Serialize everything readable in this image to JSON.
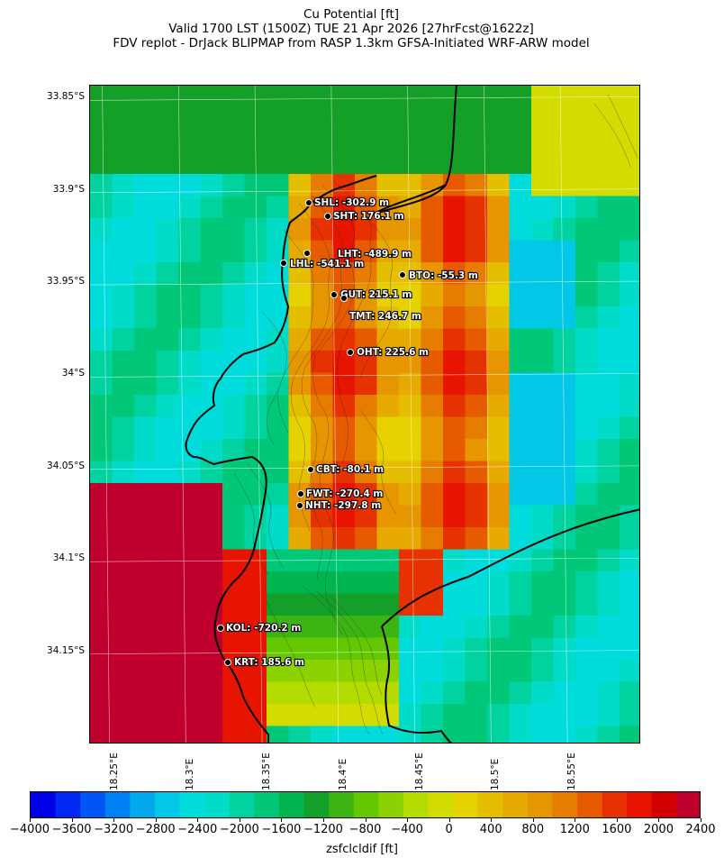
{
  "title": {
    "line1": "Cu Potential [ft]",
    "line2": "Valid 1700 LST (1500Z) TUE 21 Apr 2026 [27hrFcst@1622z]",
    "line3": "FDV replot - DrJack BLIPMAP from RASP 1.3km GFSA-Initiated WRF-ARW model"
  },
  "axes": {
    "lat_labels": [
      "33.85°S",
      "33.9°S",
      "33.95°S",
      "34°S",
      "34.05°S",
      "34.1°S",
      "34.15°S"
    ],
    "lon_labels": [
      "18.25°E",
      "18.3°E",
      "18.35°E",
      "18.4°E",
      "18.45°E",
      "18.5°E",
      "18.55°E"
    ],
    "lat_values": [
      -33.85,
      -33.9,
      -33.95,
      -34.0,
      -34.05,
      -34.1,
      -34.15
    ],
    "lon_values": [
      18.25,
      18.3,
      18.35,
      18.4,
      18.45,
      18.5,
      18.55
    ],
    "lat_range": [
      -34.2,
      -33.843
    ],
    "lon_range": [
      18.242,
      18.603
    ]
  },
  "sites": [
    {
      "code": "SHL",
      "label": "SHL: -302.9 m",
      "value_m": -302.9
    },
    {
      "code": "SHT",
      "label": "SHT: 176.1 m",
      "value_m": 176.1
    },
    {
      "code": "LHT",
      "label": "LHT: -489.9 m",
      "value_m": -489.9
    },
    {
      "code": "LHL",
      "label": "LHL: -541.1 m",
      "value_m": -541.1
    },
    {
      "code": "BTO",
      "label": "BTO: -55.3 m",
      "value_m": -55.3
    },
    {
      "code": "GUT",
      "label": "GUT: 215.1 m",
      "value_m": 215.1
    },
    {
      "code": "TMT",
      "label": "TMT: 246.7 m",
      "value_m": 246.7
    },
    {
      "code": "OHT",
      "label": "OHT: 225.6 m",
      "value_m": 225.6
    },
    {
      "code": "CBT",
      "label": "CBT: -80.1 m",
      "value_m": -80.1
    },
    {
      "code": "FWT",
      "label": "FWT: -270.4 m",
      "value_m": -270.4
    },
    {
      "code": "NHT",
      "label": "NHT: -297.8 m",
      "value_m": -297.8
    },
    {
      "code": "KOL",
      "label": "KOL: -720.2 m",
      "value_m": -720.2
    },
    {
      "code": "KRT",
      "label": "KRT: 185.6 m",
      "value_m": 185.6
    }
  ],
  "colorbar": {
    "title": "zsfclcldif [ft]",
    "min": -4000,
    "max": 2400,
    "step": 200,
    "tick_labels": [
      "-4000",
      "-3600",
      "-3200",
      "-2800",
      "-2400",
      "-2000",
      "-1600",
      "-1200",
      "-800",
      "-400",
      "0",
      "400",
      "800",
      "1200",
      "1600",
      "2000",
      "2400"
    ],
    "colors": [
      "#0000e6",
      "#0028f0",
      "#0055f5",
      "#0080f5",
      "#00a8ee",
      "#00c8e6",
      "#00dcdc",
      "#00dcc8",
      "#00d2a0",
      "#00c878",
      "#00b450",
      "#14a028",
      "#3cb414",
      "#64c800",
      "#8cd200",
      "#b4dc00",
      "#d2dc00",
      "#e6d200",
      "#e6be00",
      "#e6aa00",
      "#e69600",
      "#e67d00",
      "#e65a00",
      "#e63200",
      "#e61400",
      "#d20000",
      "#c0002c"
    ]
  },
  "colors": {
    "coast": "#000000",
    "site_marker": "#000000",
    "site_text": "#ffffff"
  }
}
